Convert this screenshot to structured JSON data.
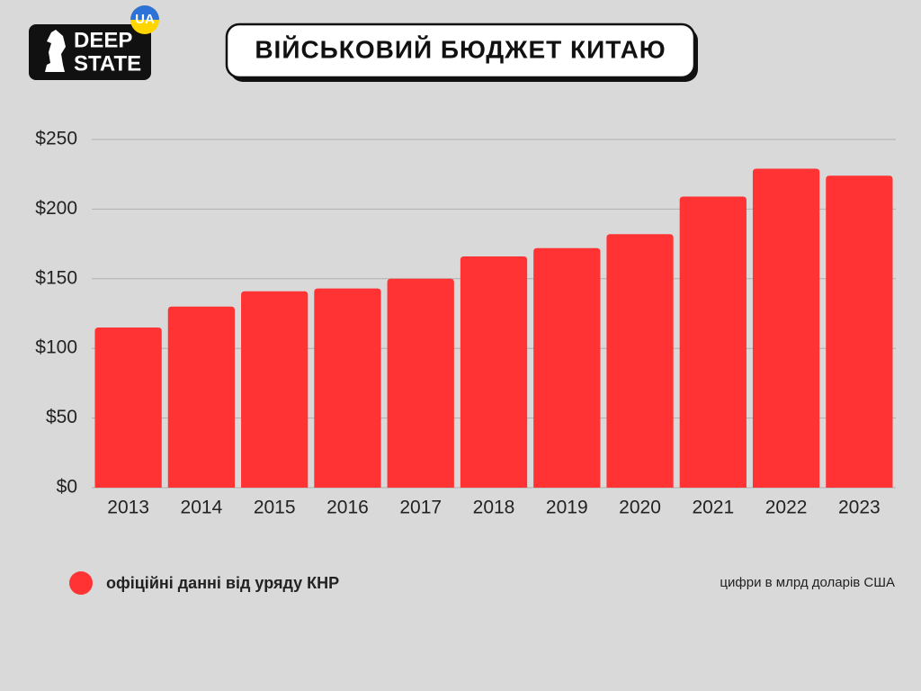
{
  "logo_text": [
    "DEEP",
    "STATE"
  ],
  "badge": "UA",
  "chart_data": {
    "type": "bar",
    "title": "ВІЙСЬКОВИЙ БЮДЖЕТ КИТАЮ",
    "categories": [
      "2013",
      "2014",
      "2015",
      "2016",
      "2017",
      "2018",
      "2019",
      "2020",
      "2021",
      "2022",
      "2023"
    ],
    "series": [
      {
        "name": "офіційні данні від уряду КНР",
        "color": "#ff3333",
        "values": [
          115,
          130,
          141,
          143,
          150,
          166,
          172,
          182,
          209,
          229,
          224
        ]
      }
    ],
    "ylim": [
      0,
      250
    ],
    "yticks": [
      {
        "value": 0,
        "label": "$0"
      },
      {
        "value": 50,
        "label": "$50"
      },
      {
        "value": 100,
        "label": "$100"
      },
      {
        "value": 150,
        "label": "$150"
      },
      {
        "value": 200,
        "label": "$200"
      },
      {
        "value": 250,
        "label": "$250"
      }
    ],
    "grid": true,
    "note": "цифри в млрд доларів США"
  }
}
